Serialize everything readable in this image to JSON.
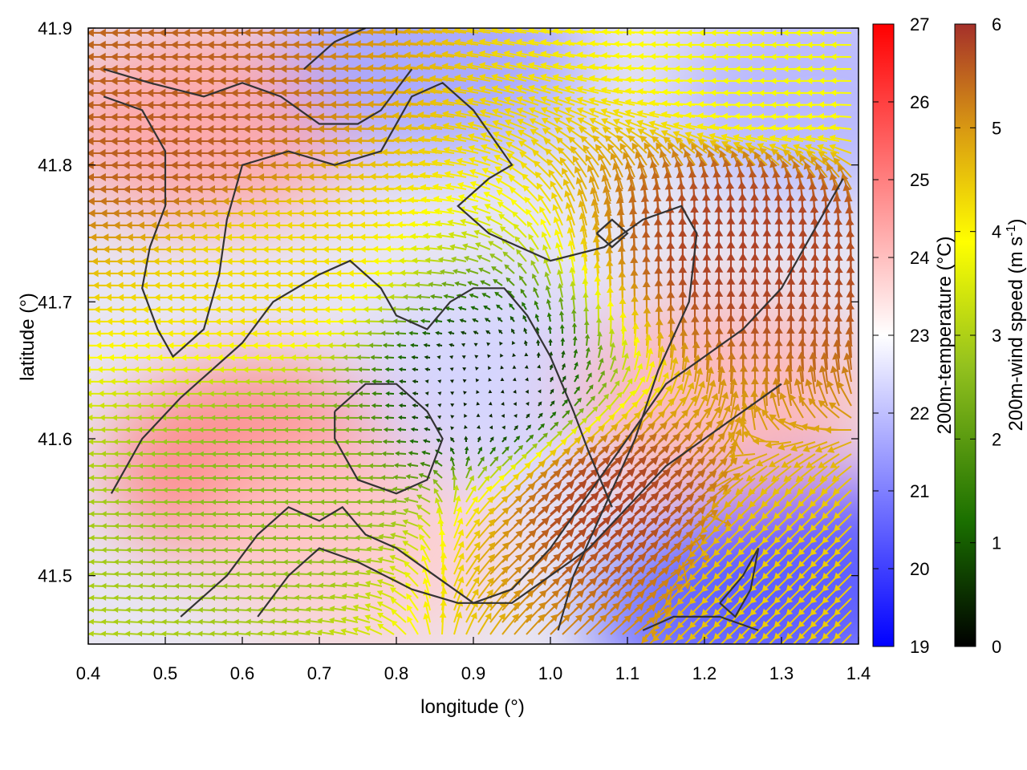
{
  "chart_data": {
    "type": "heatmap",
    "xlabel": "longitude (°)",
    "ylabel": "latitude (°)",
    "xlim": [
      0.4,
      1.4
    ],
    "ylim": [
      41.45,
      41.9
    ],
    "x_ticks": [
      "0.4",
      "0.5",
      "0.6",
      "0.7",
      "0.8",
      "0.9",
      "1.0",
      "1.1",
      "1.2",
      "1.3",
      "1.4"
    ],
    "y_ticks": [
      "41.5",
      "41.6",
      "41.7",
      "41.8",
      "41.9"
    ],
    "grid": false,
    "layers": {
      "background": "200m-temperature field (°C)",
      "vectors": "200m-wind vectors coloured by speed (m s-1)",
      "contours": "terrain contour lines"
    },
    "colorbars": [
      {
        "label": "200m-temperature (°C)",
        "range": [
          19,
          27
        ],
        "ticks": [
          "19",
          "20",
          "21",
          "22",
          "23",
          "24",
          "25",
          "26",
          "27"
        ],
        "colors": [
          "#0000ff",
          "#ffffff",
          "#ff0000"
        ]
      },
      {
        "label_main": "200m-wind speed (m s",
        "label_sup": "-1",
        "label_end": ")",
        "range": [
          0,
          6
        ],
        "ticks": [
          "0",
          "1",
          "2",
          "3",
          "4",
          "5",
          "6"
        ],
        "colors": [
          "#000000",
          "#1a6f00",
          "#93c11e",
          "#ffff00",
          "#d99a12",
          "#a5302a"
        ]
      }
    ],
    "temperature_regions": [
      {
        "lon": 0.55,
        "lat": 41.83,
        "temp": 24.5
      },
      {
        "lon": 0.85,
        "lat": 41.88,
        "temp": 21.5
      },
      {
        "lon": 0.62,
        "lat": 41.58,
        "temp": 25.0
      },
      {
        "lon": 0.75,
        "lat": 41.52,
        "temp": 23.8
      },
      {
        "lon": 0.95,
        "lat": 41.64,
        "temp": 22.3
      },
      {
        "lon": 1.35,
        "lat": 41.5,
        "temp": 20.2
      },
      {
        "lon": 1.22,
        "lat": 41.63,
        "temp": 24.2
      },
      {
        "lon": 1.35,
        "lat": 41.85,
        "temp": 21.8
      },
      {
        "lon": 1.25,
        "lat": 41.47,
        "temp": 20.5
      }
    ],
    "wind_regions": [
      {
        "lon": 0.55,
        "lat": 41.82,
        "speed": 5.5,
        "direction": "easterly"
      },
      {
        "lon": 0.92,
        "lat": 41.63,
        "speed": 0.3,
        "direction": "calm"
      },
      {
        "lon": 0.68,
        "lat": 41.58,
        "speed": 2.3,
        "direction": "easterly"
      },
      {
        "lon": 1.05,
        "lat": 41.55,
        "speed": 5.8,
        "direction": "south-westerly"
      },
      {
        "lon": 1.25,
        "lat": 41.72,
        "speed": 5.8,
        "direction": "southerly"
      },
      {
        "lon": 0.65,
        "lat": 41.72,
        "speed": 4.0,
        "direction": "easterly"
      },
      {
        "lon": 1.32,
        "lat": 41.5,
        "speed": 4.2,
        "direction": "north-easterly"
      },
      {
        "lon": 1.3,
        "lat": 41.88,
        "speed": 3.5,
        "direction": "easterly"
      }
    ],
    "contours": [
      {
        "points": [
          [
            0.42,
            41.87
          ],
          [
            0.48,
            41.86
          ],
          [
            0.55,
            41.85
          ],
          [
            0.6,
            41.86
          ],
          [
            0.65,
            41.85
          ],
          [
            0.7,
            41.83
          ],
          [
            0.75,
            41.83
          ],
          [
            0.78,
            41.84
          ],
          [
            0.82,
            41.87
          ]
        ]
      },
      {
        "points": [
          [
            0.42,
            41.85
          ],
          [
            0.47,
            41.84
          ],
          [
            0.5,
            41.81
          ],
          [
            0.5,
            41.77
          ],
          [
            0.48,
            41.74
          ],
          [
            0.47,
            41.71
          ],
          [
            0.49,
            41.68
          ],
          [
            0.51,
            41.66
          ],
          [
            0.55,
            41.68
          ],
          [
            0.57,
            41.72
          ],
          [
            0.58,
            41.76
          ],
          [
            0.6,
            41.8
          ],
          [
            0.66,
            41.81
          ],
          [
            0.72,
            41.8
          ],
          [
            0.78,
            41.81
          ],
          [
            0.82,
            41.85
          ],
          [
            0.86,
            41.86
          ],
          [
            0.9,
            41.84
          ],
          [
            0.95,
            41.8
          ],
          [
            0.92,
            41.79
          ],
          [
            0.88,
            41.77
          ],
          [
            0.92,
            41.75
          ],
          [
            1.0,
            41.73
          ],
          [
            1.07,
            41.74
          ],
          [
            1.12,
            41.76
          ],
          [
            1.17,
            41.77
          ],
          [
            1.19,
            41.75
          ],
          [
            1.18,
            41.7
          ],
          [
            1.14,
            41.65
          ],
          [
            1.11,
            41.6
          ],
          [
            1.07,
            41.55
          ],
          [
            1.03,
            41.5
          ],
          [
            1.01,
            41.46
          ]
        ]
      },
      {
        "points": [
          [
            0.43,
            41.56
          ],
          [
            0.47,
            41.6
          ],
          [
            0.52,
            41.63
          ],
          [
            0.56,
            41.65
          ],
          [
            0.6,
            41.67
          ],
          [
            0.64,
            41.7
          ],
          [
            0.7,
            41.72
          ],
          [
            0.74,
            41.73
          ],
          [
            0.78,
            41.71
          ],
          [
            0.8,
            41.69
          ],
          [
            0.84,
            41.68
          ],
          [
            0.87,
            41.7
          ],
          [
            0.9,
            41.71
          ],
          [
            0.94,
            41.71
          ],
          [
            0.97,
            41.69
          ],
          [
            1.0,
            41.66
          ],
          [
            1.03,
            41.62
          ],
          [
            1.05,
            41.59
          ],
          [
            1.08,
            41.55
          ]
        ]
      },
      {
        "points": [
          [
            0.52,
            41.47
          ],
          [
            0.58,
            41.5
          ],
          [
            0.62,
            41.53
          ],
          [
            0.66,
            41.55
          ],
          [
            0.7,
            41.54
          ],
          [
            0.73,
            41.55
          ],
          [
            0.76,
            41.53
          ],
          [
            0.8,
            41.52
          ],
          [
            0.85,
            41.5
          ],
          [
            0.9,
            41.48
          ],
          [
            0.95,
            41.49
          ],
          [
            1.0,
            41.52
          ],
          [
            1.05,
            41.56
          ],
          [
            1.1,
            41.6
          ],
          [
            1.15,
            41.64
          ],
          [
            1.2,
            41.66
          ],
          [
            1.25,
            41.68
          ],
          [
            1.3,
            41.71
          ],
          [
            1.33,
            41.74
          ],
          [
            1.36,
            41.77
          ],
          [
            1.38,
            41.79
          ]
        ]
      },
      {
        "points": [
          [
            0.62,
            41.47
          ],
          [
            0.66,
            41.5
          ],
          [
            0.7,
            41.52
          ],
          [
            0.75,
            41.51
          ],
          [
            0.82,
            41.49
          ],
          [
            0.88,
            41.48
          ],
          [
            0.95,
            41.48
          ],
          [
            1.0,
            41.5
          ],
          [
            1.05,
            41.52
          ],
          [
            1.1,
            41.55
          ],
          [
            1.15,
            41.58
          ],
          [
            1.2,
            41.6
          ],
          [
            1.25,
            41.62
          ],
          [
            1.3,
            41.64
          ]
        ]
      },
      {
        "points": [
          [
            0.72,
            41.62
          ],
          [
            0.76,
            41.64
          ],
          [
            0.8,
            41.64
          ],
          [
            0.84,
            41.62
          ],
          [
            0.86,
            41.6
          ],
          [
            0.84,
            41.57
          ],
          [
            0.8,
            41.56
          ],
          [
            0.75,
            41.57
          ],
          [
            0.72,
            41.6
          ],
          [
            0.72,
            41.62
          ]
        ]
      },
      {
        "points": [
          [
            1.06,
            41.75
          ],
          [
            1.08,
            41.76
          ],
          [
            1.1,
            41.75
          ],
          [
            1.08,
            41.74
          ],
          [
            1.06,
            41.75
          ]
        ]
      },
      {
        "points": [
          [
            1.22,
            41.48
          ],
          [
            1.25,
            41.5
          ],
          [
            1.27,
            41.52
          ],
          [
            1.26,
            41.49
          ],
          [
            1.24,
            41.47
          ],
          [
            1.22,
            41.48
          ]
        ]
      },
      {
        "points": [
          [
            1.12,
            41.46
          ],
          [
            1.16,
            41.47
          ],
          [
            1.22,
            41.47
          ],
          [
            1.27,
            41.46
          ]
        ]
      },
      {
        "points": [
          [
            0.68,
            41.87
          ],
          [
            0.72,
            41.89
          ],
          [
            0.76,
            41.9
          ]
        ]
      }
    ]
  }
}
